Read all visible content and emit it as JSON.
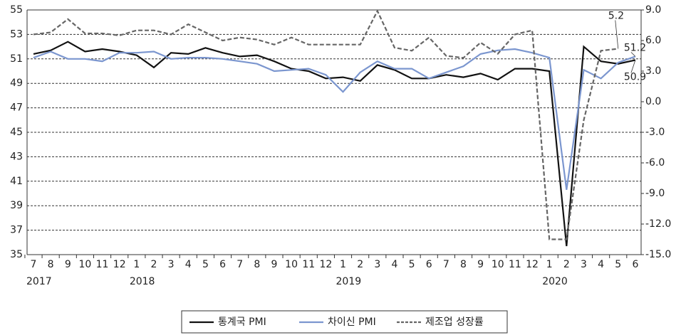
{
  "chart_data": {
    "type": "line",
    "categories": [
      "7",
      "8",
      "9",
      "10",
      "11",
      "12",
      "1",
      "2",
      "3",
      "4",
      "5",
      "6",
      "7",
      "8",
      "9",
      "10",
      "11",
      "12",
      "1",
      "2",
      "3",
      "4",
      "5",
      "6",
      "7",
      "8",
      "9",
      "10",
      "11",
      "12",
      "1",
      "2",
      "3",
      "4",
      "5",
      "6"
    ],
    "year_groups": [
      {
        "label": "2017",
        "months": 6
      },
      {
        "label": "2018",
        "months": 12
      },
      {
        "label": "2019",
        "months": 12
      },
      {
        "label": "2020",
        "months": 6
      }
    ],
    "series": [
      {
        "name": "통계국 PMI",
        "color": "#111111",
        "dash": false,
        "label_last": true,
        "values": [
          51.4,
          51.7,
          52.4,
          51.6,
          51.8,
          51.6,
          51.3,
          50.3,
          51.5,
          51.4,
          51.9,
          51.5,
          51.2,
          51.3,
          50.8,
          50.2,
          50.0,
          49.4,
          49.5,
          49.2,
          50.5,
          50.1,
          49.4,
          49.4,
          49.7,
          49.5,
          49.8,
          49.3,
          50.2,
          50.2,
          50.0,
          35.7,
          52.0,
          50.8,
          50.6,
          50.9
        ]
      },
      {
        "name": "차이신 PMI",
        "color": "#7b96cf",
        "dash": false,
        "label_last": true,
        "values": [
          51.1,
          51.6,
          51.0,
          51.0,
          50.8,
          51.5,
          51.5,
          51.6,
          51.0,
          51.1,
          51.1,
          51.0,
          50.8,
          50.6,
          50.0,
          50.1,
          50.2,
          49.7,
          48.3,
          49.9,
          50.8,
          50.2,
          50.2,
          49.4,
          49.9,
          50.4,
          51.4,
          51.7,
          51.8,
          51.5,
          51.1,
          40.3,
          50.1,
          49.4,
          50.7,
          51.2
        ]
      },
      {
        "name": "제조업 성장률",
        "color": "#666666",
        "dash": true,
        "axis": "y2",
        "label_last": true,
        "values": [
          6.6,
          6.8,
          8.1,
          6.7,
          6.7,
          6.5,
          7.0,
          7.0,
          6.6,
          7.6,
          6.8,
          6.0,
          6.3,
          6.1,
          5.6,
          6.3,
          5.6,
          5.6,
          5.6,
          5.6,
          8.9,
          5.3,
          5.0,
          6.3,
          4.5,
          4.3,
          5.8,
          4.7,
          6.6,
          7.0,
          -13.5,
          -13.5,
          -1.8,
          5.0,
          5.2,
          null
        ]
      }
    ],
    "ylim": [
      35,
      55
    ],
    "yticks": [
      35,
      37,
      39,
      41,
      43,
      45,
      47,
      49,
      51,
      53,
      55
    ],
    "y2lim": [
      -15,
      9
    ],
    "y2ticks": [
      {
        "value": -15,
        "label": "-15.0"
      },
      {
        "value": -12,
        "label": "-12.0"
      },
      {
        "value": -9,
        "label": "-9.0"
      },
      {
        "value": -6,
        "label": "-6.0"
      },
      {
        "value": -3,
        "label": "-3.0"
      },
      {
        "value": 0,
        "label": "0.0"
      },
      {
        "value": 3,
        "label": "3.0"
      },
      {
        "value": 6,
        "label": "6.0"
      },
      {
        "value": 9,
        "label": "9.0"
      }
    ],
    "grid": true
  }
}
